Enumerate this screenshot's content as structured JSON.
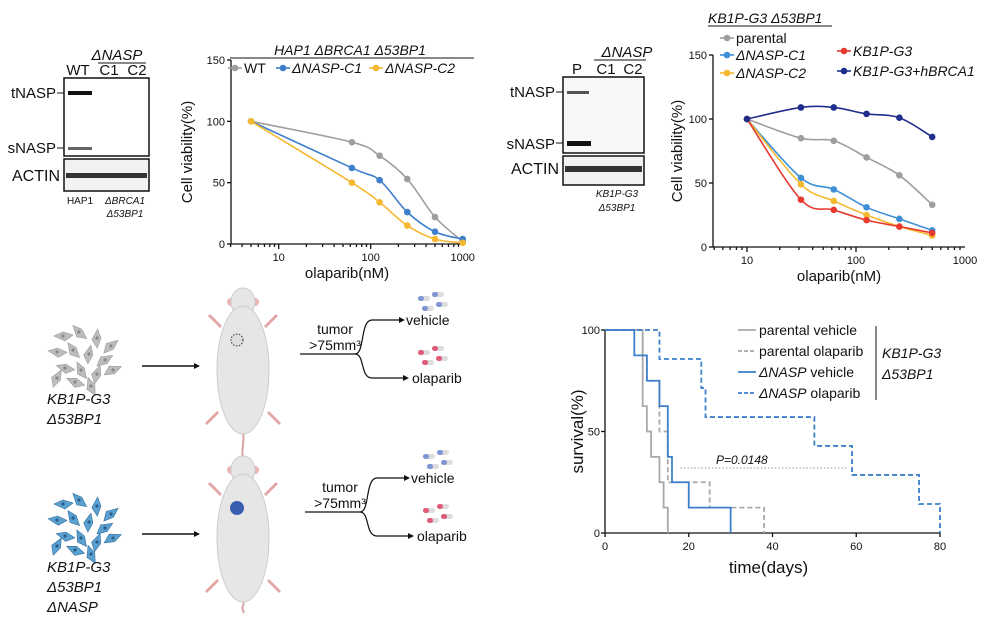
{
  "blot_hap1": {
    "group_label": "ΔNASP",
    "lanes": [
      "WT",
      "C1",
      "C2"
    ],
    "bands": [
      "tNASP",
      "sNASP"
    ],
    "loading": "ACTIN",
    "cell_line": [
      "HAP1",
      "ΔBRCA1",
      "Δ53BP1"
    ]
  },
  "blot_kb1p": {
    "group_label": "ΔNASP",
    "lanes": [
      "P",
      "C1",
      "C2"
    ],
    "bands": [
      "tNASP",
      "sNASP"
    ],
    "loading": "ACTIN",
    "cell_line": [
      "KB1P-G3",
      "Δ53BP1"
    ]
  },
  "diagram": {
    "groups": [
      {
        "cell_line": [
          "KB1P-G3",
          "Δ53BP1"
        ],
        "cell_color": "#bdbdbd",
        "tumor_color": "#3a5fb0"
      },
      {
        "cell_line": [
          "KB1P-G3",
          "Δ53BP1",
          "ΔNASP"
        ],
        "cell_color": "#5aa0d0",
        "tumor_color": "#3a5fb0"
      }
    ],
    "condition": [
      "tumor",
      ">75mm³"
    ],
    "arms": [
      "vehicle",
      "olaparib"
    ]
  },
  "chart_data": [
    {
      "type": "line",
      "title": "HAP1 ΔBRCA1 Δ53BP1",
      "xlabel": "olaparib(nM)",
      "ylabel": "Cell viability(%)",
      "xscale": "log",
      "xticks": [
        "10",
        "100",
        "1000"
      ],
      "yticks": [
        "0",
        "50",
        "100",
        "150"
      ],
      "ylim": [
        0,
        150
      ],
      "legend": "top",
      "x": [
        5,
        62.5,
        125,
        250,
        500,
        1000
      ],
      "series": [
        {
          "name": "WT",
          "color": "#9e9e9e",
          "values": [
            100,
            83,
            72,
            53,
            22,
            2
          ]
        },
        {
          "name": "ΔNASP-C1",
          "color": "#3d7fcc",
          "values": [
            100,
            62,
            52,
            26,
            10,
            4
          ]
        },
        {
          "name": "ΔNASP-C2",
          "color": "#f5b82e",
          "values": [
            100,
            50,
            34,
            15,
            4,
            1
          ]
        }
      ]
    },
    {
      "type": "line",
      "title": "KB1P-G3 Δ53BP1",
      "xlabel": "olaparib(nM)",
      "ylabel": "Cell viability(%)",
      "xscale": "log",
      "xticks": [
        "10",
        "100",
        "1000"
      ],
      "yticks": [
        "0",
        "50",
        "100",
        "150"
      ],
      "ylim": [
        0,
        150
      ],
      "legend": "top",
      "x": [
        10,
        31.25,
        62.5,
        125,
        250,
        500
      ],
      "series": [
        {
          "name": "parental",
          "color": "#9e9e9e",
          "values": [
            100,
            85,
            83,
            70,
            56,
            33
          ]
        },
        {
          "name": "ΔNASP-C1",
          "color": "#3d8fd6",
          "values": [
            100,
            54,
            45,
            31,
            22,
            13
          ]
        },
        {
          "name": "ΔNASP-C2",
          "color": "#f5b82e",
          "values": [
            100,
            49,
            36,
            25,
            16,
            9
          ]
        },
        {
          "name": "KB1P-G3",
          "color": "#e8392f",
          "values": [
            100,
            37,
            29,
            21,
            16,
            11
          ]
        },
        {
          "name": "KB1P-G3+hBRCA1",
          "color": "#1f2e8a",
          "values": [
            100,
            109,
            109,
            104,
            101,
            86
          ]
        }
      ]
    },
    {
      "type": "line",
      "subtype": "kaplan-meier",
      "xlabel": "time(days)",
      "ylabel": "survival(%)",
      "xticks": [
        "0",
        "20",
        "40",
        "60",
        "80"
      ],
      "yticks": [
        "0",
        "50",
        "100"
      ],
      "xlim": [
        0,
        80
      ],
      "ylim": [
        0,
        100
      ],
      "legend": "top-right",
      "legend_group": [
        "KB1P-G3",
        "Δ53BP1"
      ],
      "annotation": "P=0.0148",
      "series": [
        {
          "name": "parental vehicle",
          "color": "#a8a8a8",
          "dashed": false,
          "steps": [
            [
              0,
              100
            ],
            [
              9,
              62.5
            ],
            [
              10,
              50
            ],
            [
              11,
              37.5
            ],
            [
              13,
              25
            ],
            [
              14,
              12.5
            ],
            [
              15,
              0
            ]
          ]
        },
        {
          "name": "parental olaparib",
          "color": "#a8a8a8",
          "dashed": true,
          "steps": [
            [
              0,
              100
            ],
            [
              9,
              87.5
            ],
            [
              10,
              75
            ],
            [
              13,
              50
            ],
            [
              15,
              25
            ],
            [
              25,
              12.5
            ],
            [
              38,
              0
            ]
          ]
        },
        {
          "name": "ΔNASP vehicle",
          "color": "#3d7fcc",
          "dashed": false,
          "steps": [
            [
              0,
              100
            ],
            [
              7,
              87.5
            ],
            [
              10,
              75
            ],
            [
              13,
              62.5
            ],
            [
              15,
              37.5
            ],
            [
              16,
              25
            ],
            [
              20,
              12.5
            ],
            [
              30,
              0
            ]
          ]
        },
        {
          "name": "ΔNASP olaparib",
          "color": "#3d7fcc",
          "dashed": true,
          "steps": [
            [
              0,
              100
            ],
            [
              13,
              85.7
            ],
            [
              23,
              71.4
            ],
            [
              24,
              57.1
            ],
            [
              50,
              42.9
            ],
            [
              59,
              28.6
            ],
            [
              75,
              14.3
            ],
            [
              80,
              0
            ]
          ]
        }
      ]
    }
  ]
}
